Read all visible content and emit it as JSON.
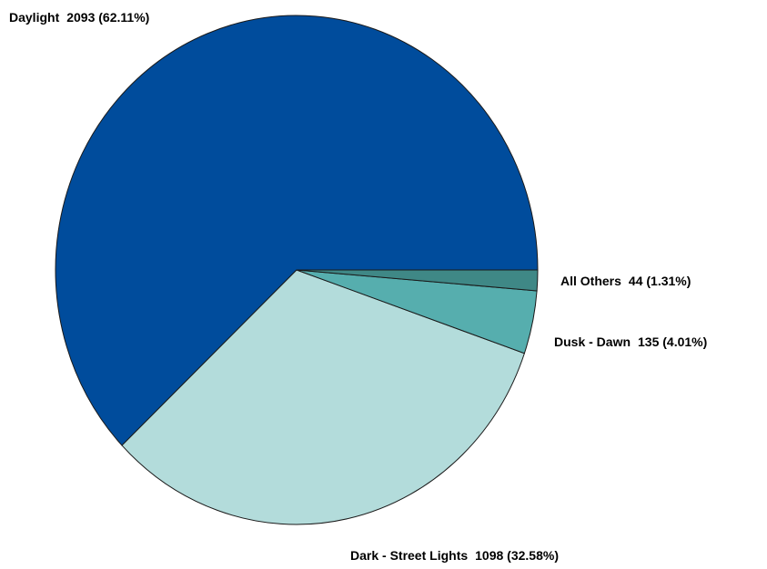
{
  "chart_data": {
    "type": "pie",
    "categories": [
      "Daylight",
      "Dark - Street Lights",
      "Dusk - Dawn",
      "All Others"
    ],
    "values": [
      2093,
      1098,
      135,
      44
    ],
    "value_labels": [
      "2093 (62.11%)",
      "1098 (32.58%)",
      "135 (4.01%)",
      "44 (1.31%)"
    ],
    "colors": [
      "#004c9c",
      "#b3dcdb",
      "#56aeae",
      "#3f8886"
    ]
  }
}
